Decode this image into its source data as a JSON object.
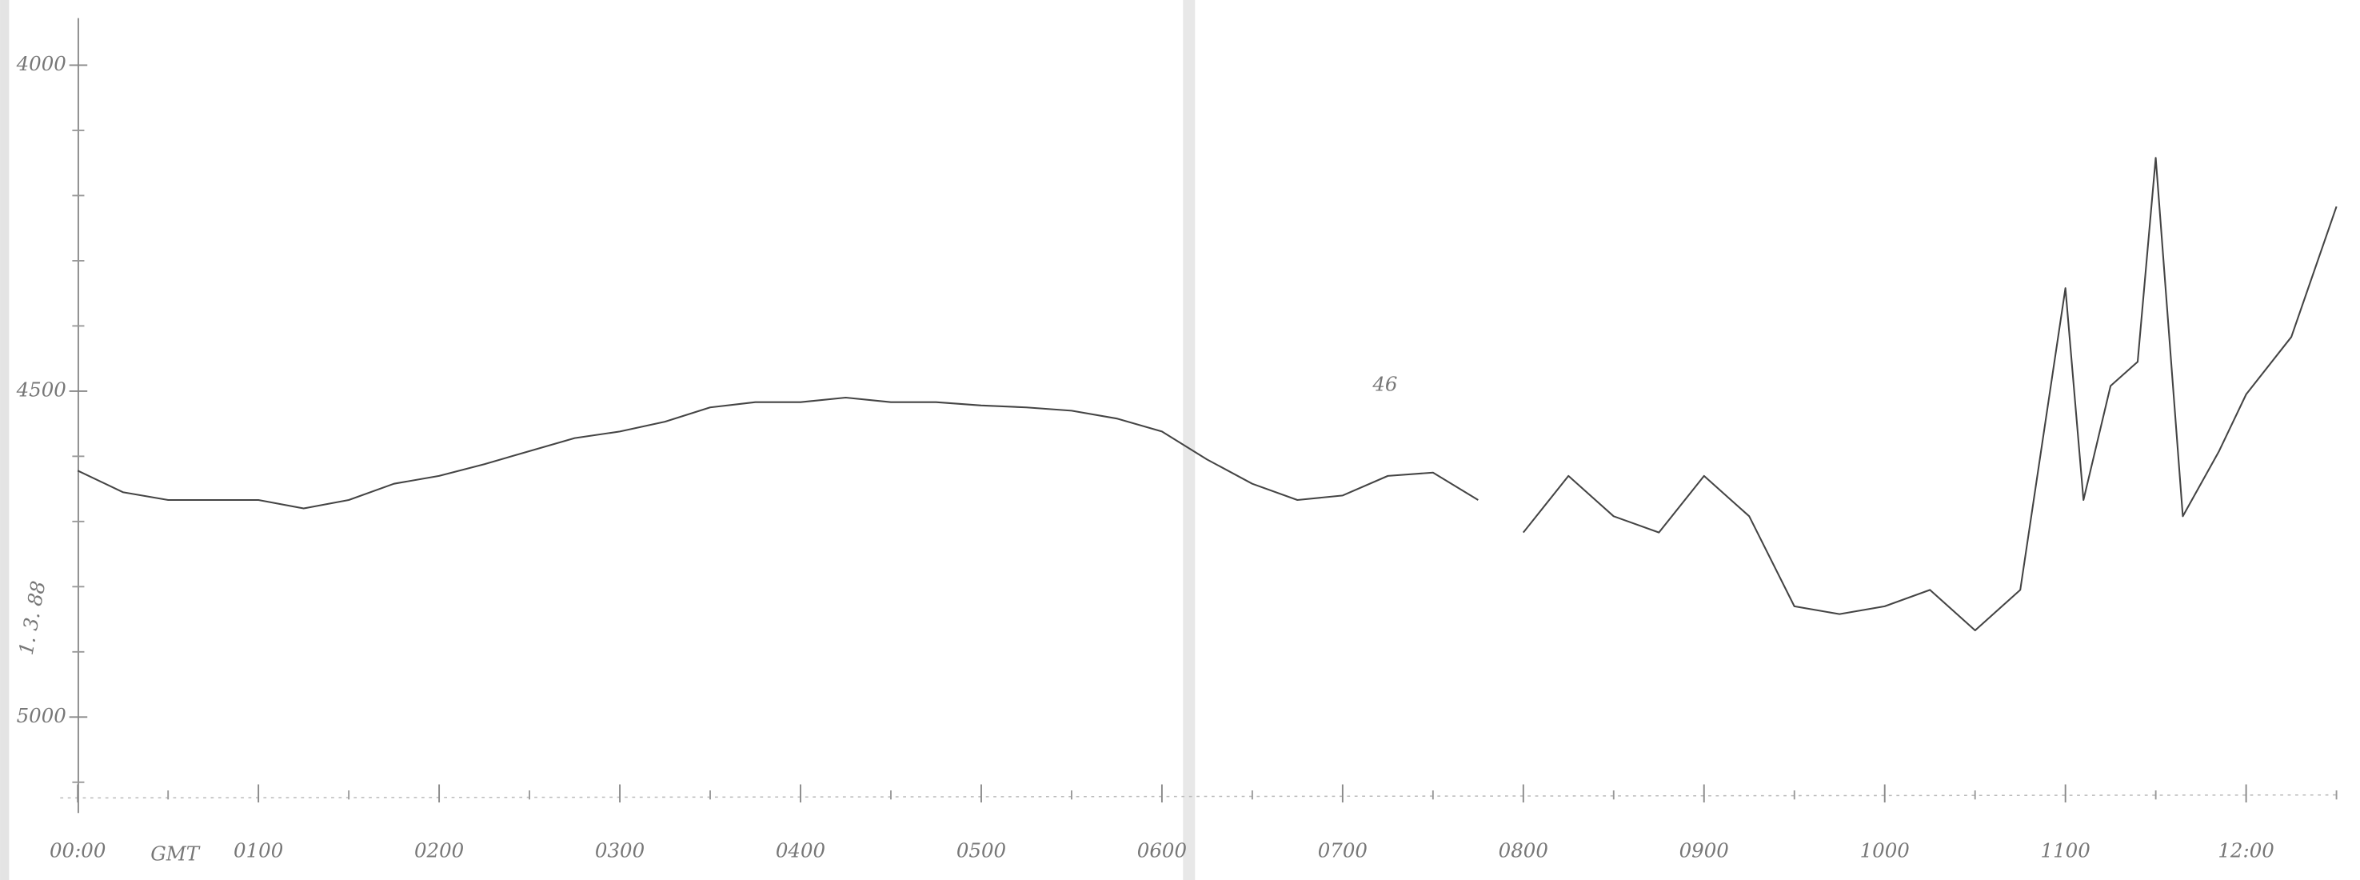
{
  "chart_data": {
    "type": "line",
    "x_label": "GMT",
    "annotations": [
      "46",
      "1. 3. 88"
    ],
    "x": [
      0,
      0.25,
      0.5,
      0.75,
      1,
      1.25,
      1.5,
      1.75,
      2,
      2.25,
      2.5,
      2.75,
      3,
      3.25,
      3.5,
      3.75,
      4,
      4.25,
      4.5,
      4.75,
      5,
      5.25,
      5.5,
      5.75,
      6,
      6.25,
      6.5,
      6.75,
      7,
      7.25,
      7.5,
      7.75,
      7.9,
      8,
      8.25,
      8.5,
      8.75,
      9,
      9.25,
      9.5,
      9.75,
      10,
      10.25,
      10.5,
      10.75,
      11,
      11.1,
      11.25,
      11.4,
      11.5,
      11.65,
      11.85,
      12,
      12.25,
      12.5
    ],
    "series": [
      {
        "color": "#444444",
        "values": [
          4622,
          4655,
          4667,
          4667,
          4667,
          4680,
          4667,
          4642,
          4630,
          4612,
          4592,
          4572,
          4562,
          4547,
          4525,
          4517,
          4517,
          4510,
          4517,
          4517,
          4522,
          4525,
          4530,
          4542,
          4562,
          4605,
          4642,
          4667,
          4660,
          4630,
          4625,
          4667,
          null,
          4717,
          4630,
          4692,
          4717,
          4630,
          4692,
          4830,
          4842,
          4830,
          4805,
          4867,
          4805,
          4342,
          4667,
          4492,
          4455,
          4142,
          4692,
          4592,
          4505,
          4417,
          4217
        ]
      }
    ],
    "xlim": [
      -0.43,
      12.63
    ],
    "ylim": [
      5250,
      3900
    ],
    "xticks": [
      {
        "value": 0,
        "label": "00:00"
      },
      {
        "value": 1,
        "label": "0100"
      },
      {
        "value": 2,
        "label": "0200"
      },
      {
        "value": 3,
        "label": "0300"
      },
      {
        "value": 4,
        "label": "0400"
      },
      {
        "value": 5,
        "label": "0500"
      },
      {
        "value": 6,
        "label": "0600"
      },
      {
        "value": 7,
        "label": "0700"
      },
      {
        "value": 8,
        "label": "0800"
      },
      {
        "value": 9,
        "label": "0900"
      },
      {
        "value": 10,
        "label": "1000"
      },
      {
        "value": 11,
        "label": "1100"
      },
      {
        "value": 12,
        "label": "12:00"
      }
    ],
    "minor_xticks": [
      0.5,
      1.5,
      2.5,
      3.5,
      4.5,
      5.5,
      6.5,
      7.5,
      8.5,
      9.5,
      10.5,
      11.5,
      12.5
    ],
    "yticks": [
      4000,
      4500,
      5000
    ],
    "minor_yticks": [
      4100,
      4200,
      4300,
      4400,
      4600,
      4700,
      4800,
      4900,
      5100
    ]
  }
}
